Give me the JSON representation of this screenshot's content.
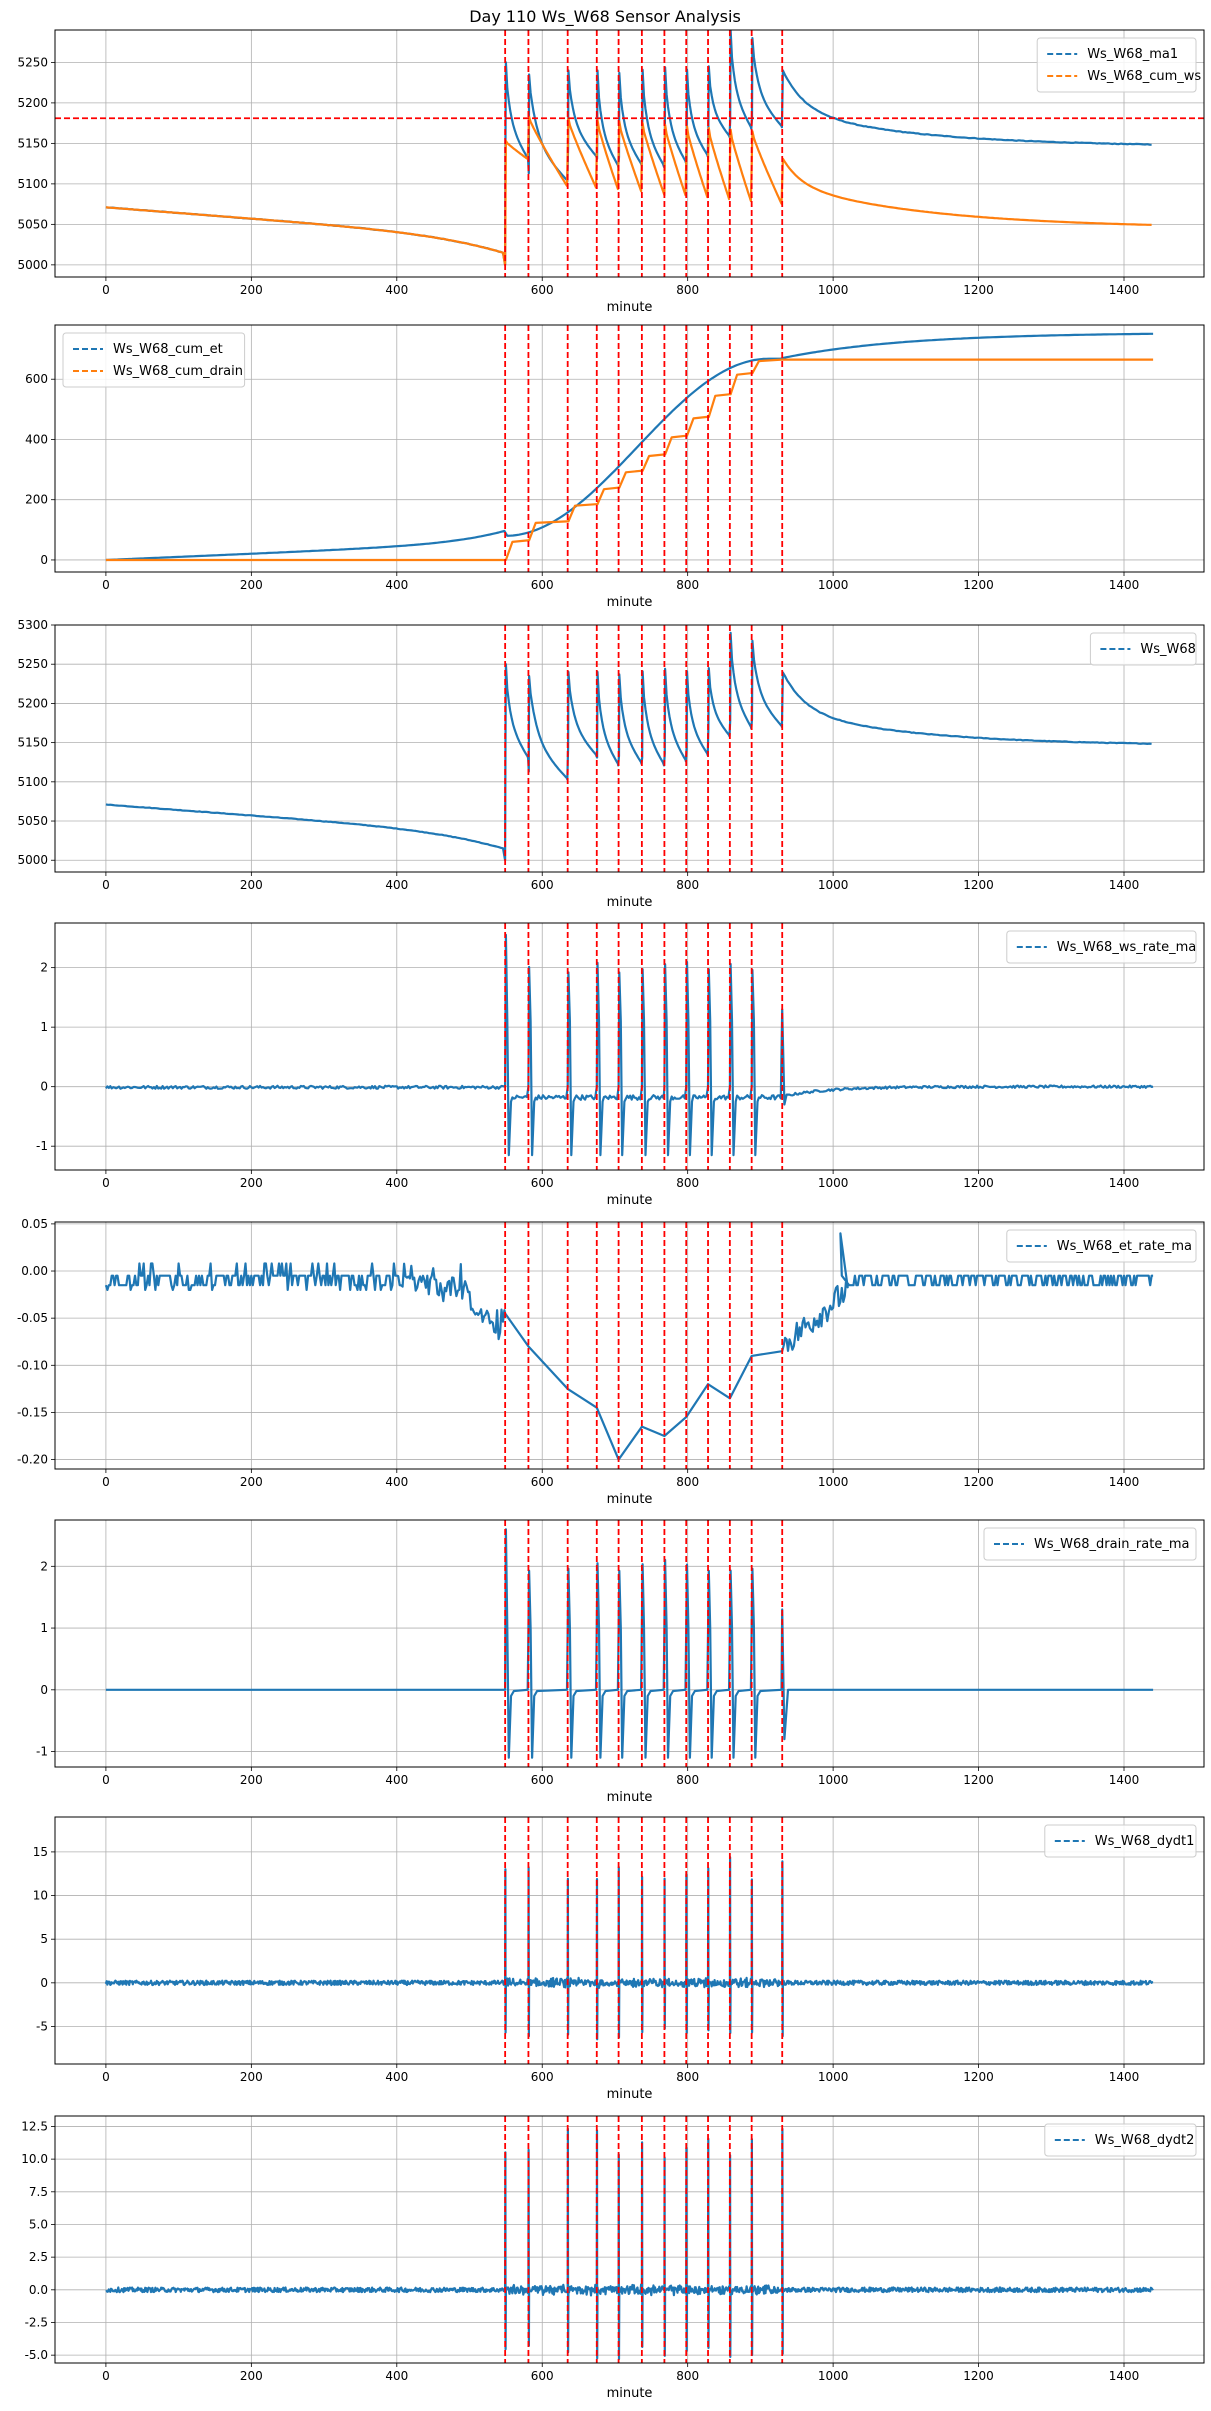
{
  "figure": {
    "title": "Day 110 Ws_W68 Sensor Analysis"
  },
  "colors": {
    "blue": "#1f77b4",
    "orange": "#ff7f0e",
    "event_red": "#ff0000",
    "grid": "#b0b0b0"
  },
  "chart_data": [
    {
      "type": "line",
      "xlabel": "minute",
      "xlim": [
        -70,
        1510
      ],
      "xticks": [
        0,
        200,
        400,
        600,
        800,
        1000,
        1200,
        1400
      ],
      "ylim": [
        4985,
        5290
      ],
      "yticks": [
        5000,
        5050,
        5100,
        5150,
        5200,
        5250
      ],
      "ytick_labels": [
        "5000",
        "5050",
        "5100",
        "5150",
        "5200",
        "5250"
      ],
      "legend": "upper right",
      "hline": 5181,
      "series": [
        {
          "name": "Ws_W68_ma1",
          "color": "#1f77b4",
          "shape": "ws_ma1"
        },
        {
          "name": "Ws_W68_cum_ws",
          "color": "#ff7f0e",
          "shape": "cum_ws"
        }
      ]
    },
    {
      "type": "line",
      "xlabel": "minute",
      "xlim": [
        -70,
        1510
      ],
      "xticks": [
        0,
        200,
        400,
        600,
        800,
        1000,
        1200,
        1400
      ],
      "ylim": [
        -40,
        780
      ],
      "yticks": [
        0,
        200,
        400,
        600
      ],
      "ytick_labels": [
        "0",
        "200",
        "400",
        "600"
      ],
      "legend": "upper left",
      "series": [
        {
          "name": "Ws_W68_cum_et",
          "color": "#1f77b4",
          "shape": "cum_et"
        },
        {
          "name": "Ws_W68_cum_drain",
          "color": "#ff7f0e",
          "shape": "cum_drain"
        }
      ]
    },
    {
      "type": "line",
      "xlabel": "minute",
      "xlim": [
        -70,
        1510
      ],
      "xticks": [
        0,
        200,
        400,
        600,
        800,
        1000,
        1200,
        1400
      ],
      "ylim": [
        4985,
        5300
      ],
      "yticks": [
        5000,
        5050,
        5100,
        5150,
        5200,
        5250,
        5300
      ],
      "ytick_labels": [
        "5000",
        "5050",
        "5100",
        "5150",
        "5200",
        "5250",
        "5300"
      ],
      "legend": "upper right",
      "series": [
        {
          "name": "Ws_W68",
          "color": "#1f77b4",
          "shape": "ws"
        }
      ]
    },
    {
      "type": "line",
      "xlabel": "minute",
      "xlim": [
        -70,
        1510
      ],
      "xticks": [
        0,
        200,
        400,
        600,
        800,
        1000,
        1200,
        1400
      ],
      "ylim": [
        -1.4,
        2.75
      ],
      "yticks": [
        -1,
        0,
        1,
        2
      ],
      "ytick_labels": [
        "-1",
        "0",
        "1",
        "2"
      ],
      "legend": "upper right",
      "series": [
        {
          "name": "Ws_W68_ws_rate_ma",
          "color": "#1f77b4",
          "shape": "ws_rate"
        }
      ]
    },
    {
      "type": "line",
      "xlabel": "minute",
      "xlim": [
        -70,
        1510
      ],
      "xticks": [
        0,
        200,
        400,
        600,
        800,
        1000,
        1200,
        1400
      ],
      "ylim": [
        -0.21,
        0.052
      ],
      "yticks": [
        -0.2,
        -0.15,
        -0.1,
        -0.05,
        0.0,
        0.05
      ],
      "ytick_labels": [
        "-0.20",
        "-0.15",
        "-0.10",
        "-0.05",
        "0.00",
        "0.05"
      ],
      "legend": "upper right",
      "series": [
        {
          "name": "Ws_W68_et_rate_ma",
          "color": "#1f77b4",
          "shape": "et_rate"
        }
      ]
    },
    {
      "type": "line",
      "xlabel": "minute",
      "xlim": [
        -70,
        1510
      ],
      "xticks": [
        0,
        200,
        400,
        600,
        800,
        1000,
        1200,
        1400
      ],
      "ylim": [
        -1.25,
        2.75
      ],
      "yticks": [
        -1,
        0,
        1,
        2
      ],
      "ytick_labels": [
        "-1",
        "0",
        "1",
        "2"
      ],
      "legend": "upper right",
      "series": [
        {
          "name": "Ws_W68_drain_rate_ma",
          "color": "#1f77b4",
          "shape": "drain_rate"
        }
      ]
    },
    {
      "type": "line",
      "xlabel": "minute",
      "xlim": [
        -70,
        1510
      ],
      "xticks": [
        0,
        200,
        400,
        600,
        800,
        1000,
        1200,
        1400
      ],
      "ylim": [
        -9.3,
        19
      ],
      "yticks": [
        -5,
        0,
        5,
        10,
        15
      ],
      "ytick_labels": [
        "-5",
        "0",
        "5",
        "10",
        "15"
      ],
      "legend": "upper right",
      "series": [
        {
          "name": "Ws_W68_dydt1",
          "color": "#1f77b4",
          "shape": "dydt1"
        }
      ]
    },
    {
      "type": "line",
      "xlabel": "minute",
      "xlim": [
        -70,
        1510
      ],
      "xticks": [
        0,
        200,
        400,
        600,
        800,
        1000,
        1200,
        1400
      ],
      "ylim": [
        -5.6,
        13.3
      ],
      "yticks": [
        -5.0,
        -2.5,
        0.0,
        2.5,
        5.0,
        7.5,
        10.0,
        12.5
      ],
      "ytick_labels": [
        "-5.0",
        "-2.5",
        "0.0",
        "2.5",
        "5.0",
        "7.5",
        "10.0",
        "12.5"
      ],
      "legend": "upper right",
      "series": [
        {
          "name": "Ws_W68_dydt2",
          "color": "#1f77b4",
          "shape": "dydt2"
        }
      ]
    }
  ],
  "event_minutes": [
    549,
    581,
    635,
    675,
    705,
    737,
    768,
    798,
    828,
    858,
    888,
    930
  ],
  "events": [
    {
      "start": 549,
      "end": 581,
      "peak": 5250,
      "trough": 5130
    },
    {
      "start": 581,
      "end": 635,
      "peak": 5235,
      "trough": 5103
    },
    {
      "start": 635,
      "end": 675,
      "peak": 5240,
      "trough": 5133
    },
    {
      "start": 675,
      "end": 705,
      "peak": 5240,
      "trough": 5121
    },
    {
      "start": 705,
      "end": 737,
      "peak": 5237,
      "trough": 5123
    },
    {
      "start": 737,
      "end": 768,
      "peak": 5241,
      "trough": 5121
    },
    {
      "start": 768,
      "end": 798,
      "peak": 5244,
      "trough": 5126
    },
    {
      "start": 798,
      "end": 828,
      "peak": 5241,
      "trough": 5134
    },
    {
      "start": 828,
      "end": 858,
      "peak": 5245,
      "trough": 5158
    },
    {
      "start": 858,
      "end": 888,
      "peak": 5290,
      "trough": 5168
    },
    {
      "start": 888,
      "end": 930,
      "peak": 5280,
      "trough": 5170
    }
  ],
  "baseline": {
    "start_value": 5071,
    "pre_event_low": 5000,
    "end_value": 5146,
    "end_minute": 1440
  }
}
